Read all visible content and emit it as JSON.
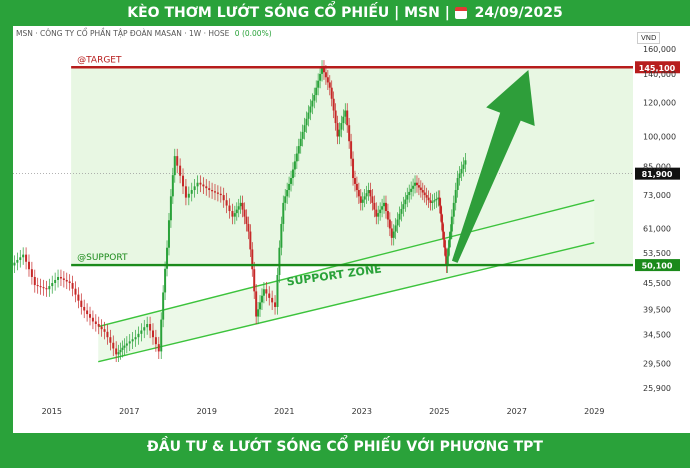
{
  "header": {
    "title_prefix": "KÈO THƠM LƯỚT SÓNG CỔ PHIẾU | MSN |",
    "date": "24/09/2025",
    "calendar_icon": "calendar-icon"
  },
  "footer": {
    "text": "ĐẦU TƯ & LƯỚT SÓNG CỔ PHIẾU VỚI PHƯƠNG TPT"
  },
  "chart_info": {
    "symbol_line": "MSN · CÔNG TY CỔ PHẦN TẬP ĐOÀN MASAN · 1W · HOSE",
    "change": "0 (0.00%)",
    "currency": "VND"
  },
  "chart_data": {
    "type": "line",
    "symbol": "MSN",
    "timeframe": "1W",
    "xlim": [
      2014.0,
      2030.0
    ],
    "ylim": [
      24000,
      168000
    ],
    "x_ticks": [
      2015,
      2017,
      2019,
      2021,
      2023,
      2025,
      2027,
      2029
    ],
    "y_ticks": [
      25900,
      29500,
      34500,
      39500,
      45500,
      53500,
      61000,
      73000,
      85000,
      100000,
      120000,
      140000,
      160000
    ],
    "y_tick_labels": [
      "25,900",
      "29,500",
      "34,500",
      "39,500",
      "45,500",
      "53,500",
      "61,000",
      "73,000",
      "85,000",
      "100,000",
      "120,000",
      "140,000",
      "160,000"
    ],
    "price_series": {
      "x": [
        2014.0,
        2014.3,
        2014.6,
        2014.9,
        2015.2,
        2015.5,
        2015.8,
        2016.1,
        2016.4,
        2016.7,
        2016.9,
        2017.2,
        2017.5,
        2017.8,
        2018.0,
        2018.2,
        2018.5,
        2018.8,
        2019.1,
        2019.4,
        2019.7,
        2019.9,
        2020.1,
        2020.3,
        2020.5,
        2020.8,
        2021.0,
        2021.2,
        2021.4,
        2021.6,
        2021.8,
        2022.0,
        2022.2,
        2022.4,
        2022.6,
        2022.8,
        2023.0,
        2023.2,
        2023.4,
        2023.6,
        2023.8,
        2024.0,
        2024.2,
        2024.4,
        2024.6,
        2024.8,
        2025.0,
        2025.1,
        2025.2,
        2025.3,
        2025.5,
        2025.7
      ],
      "y": [
        50000,
        53000,
        45000,
        44000,
        47000,
        45500,
        40000,
        37000,
        35000,
        31000,
        32500,
        34000,
        36500,
        31500,
        55000,
        90000,
        72000,
        78000,
        75000,
        73000,
        65000,
        70000,
        60000,
        38000,
        44000,
        40000,
        70000,
        80000,
        95000,
        110000,
        125000,
        145000,
        130000,
        100000,
        115000,
        80000,
        70000,
        75000,
        65000,
        70000,
        58000,
        66000,
        73000,
        78000,
        74000,
        70000,
        72000,
        60000,
        50000,
        60000,
        80000,
        88000
      ]
    },
    "lines": [
      {
        "name": "@TARGET",
        "value": 145100,
        "label": "145,100",
        "color": "#b71c1c"
      },
      {
        "name": "@SUPPORT",
        "value": 50100,
        "label": "50,100",
        "color": "#1b8a1b"
      }
    ],
    "current_price": {
      "value": 81900,
      "label": "81,900"
    },
    "channel": {
      "label": "SUPPORT ZONE",
      "upper": [
        [
          2016.2,
          36000
        ],
        [
          2029.0,
          71000
        ]
      ],
      "lower": [
        [
          2016.2,
          29800
        ],
        [
          2029.0,
          56500
        ]
      ]
    },
    "arrow": {
      "from": [
        2025.4,
        51000
      ],
      "to": [
        2027.3,
        143000
      ],
      "color": "#2e9e3a"
    },
    "zone": {
      "from_x": 2015.5,
      "top": 145100,
      "bottom": 50100
    },
    "colors": {
      "up": "#2aa23a",
      "down": "#c62828",
      "banner": "#2aa23a"
    }
  }
}
